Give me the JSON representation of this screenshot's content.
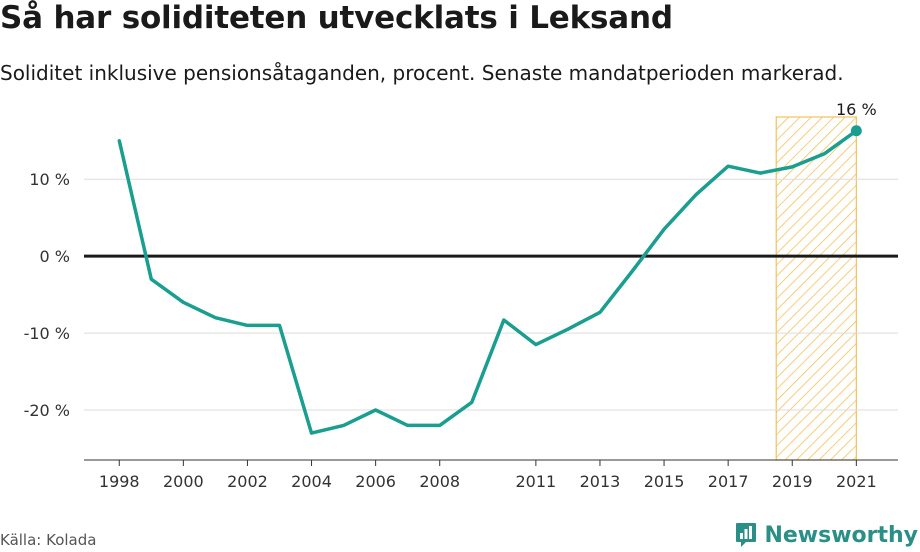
{
  "title": "Så har soliditeten utvecklats i Leksand",
  "subtitle": "Soliditet inklusive pensionsåtaganden, procent. Senaste mandatperioden markerad.",
  "source": "Källa: Kolada",
  "brand": "Newsworthy",
  "colors": {
    "line": "#1a9e8f",
    "highlight": "#f5c15c",
    "zero_line": "#1a1a1a",
    "grid": "#dddddd",
    "brand": "#2a8f86"
  },
  "chart_data": {
    "type": "line",
    "x": [
      1998,
      1999,
      2000,
      2001,
      2002,
      2003,
      2004,
      2005,
      2006,
      2007,
      2008,
      2009,
      2010,
      2011,
      2012,
      2013,
      2014,
      2015,
      2016,
      2017,
      2018,
      2019,
      2020,
      2021
    ],
    "values": [
      15,
      -3,
      -6,
      -8,
      -9,
      -9,
      -23,
      -22,
      -20,
      -22,
      -22,
      -19,
      -8.3,
      -11.5,
      -9.5,
      -7.3,
      -2,
      3.5,
      8,
      11.7,
      10.8,
      11.6,
      13.3,
      16.3
    ],
    "xticks": [
      1998,
      2000,
      2002,
      2004,
      2006,
      2008,
      2011,
      2013,
      2015,
      2017,
      2019,
      2021
    ],
    "yticks": [
      10,
      0,
      -10,
      -20
    ],
    "ytick_labels": [
      "10 %",
      "0 %",
      "-10 %",
      "-20 %"
    ],
    "ylim": [
      -26.5,
      19
    ],
    "xlim": [
      1996.9,
      2022.3
    ],
    "highlight_range": [
      2018.5,
      2021
    ],
    "end_label": "16 %",
    "grid": true
  }
}
